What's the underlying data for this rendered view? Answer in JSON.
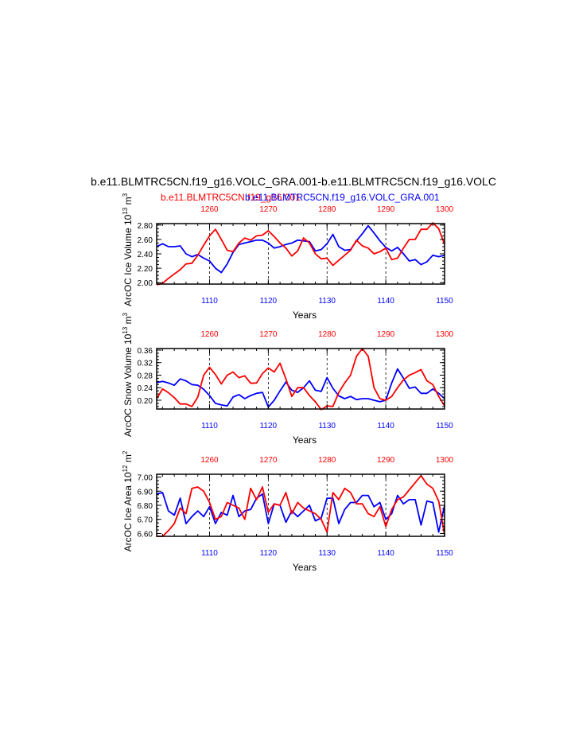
{
  "figure": {
    "title": "b.e11.BLMTRC5CN.f19_g16.VOLC_GRA.001-b.e11.BLMTRC5CN.f19_g16.VOLC",
    "legend_red": "b.e11.BLMTRC5CN.f19_g16.001",
    "legend_blue": "b.e11.BLMTRC5CN.f19_g16.VOLC_GRA.001",
    "colors": {
      "red": "#ff0000",
      "blue": "#0000ff",
      "axis": "#000000",
      "grid": "#000000"
    }
  },
  "chart_data": [
    {
      "type": "line",
      "ylabel": "ArcOC Ice Volume 10",
      "ylabel_exp": "13",
      "ylabel_unit": " m",
      "ylabel_unit_exp": "3",
      "xlabel": "Years",
      "x_bottom": {
        "range": [
          1101,
          1150
        ],
        "ticks": [
          "1110",
          "1120",
          "1130",
          "1140",
          "1150"
        ]
      },
      "x_top": {
        "range": [
          1251,
          1300
        ],
        "ticks": [
          "1260",
          "1270",
          "1280",
          "1290",
          "1300"
        ]
      },
      "ylim": [
        1.98,
        2.82
      ],
      "yticks": [
        "2.00",
        "2.20",
        "2.40",
        "2.60",
        "2.80"
      ],
      "grid_x": [
        1110,
        1120,
        1130,
        1140
      ],
      "series": [
        {
          "color": "#0000ff",
          "axis": "bottom",
          "x": [
            1101,
            1102,
            1103,
            1104,
            1105,
            1106,
            1107,
            1108,
            1109,
            1110,
            1111,
            1112,
            1113,
            1114,
            1115,
            1116,
            1117,
            1118,
            1119,
            1120,
            1121,
            1122,
            1123,
            1124,
            1125,
            1126,
            1127,
            1128,
            1129,
            1130,
            1131,
            1132,
            1133,
            1134,
            1135,
            1136,
            1137,
            1138,
            1139,
            1140,
            1141,
            1142,
            1143,
            1144,
            1145,
            1146,
            1147,
            1148,
            1149,
            1150
          ],
          "values": [
            2.5,
            2.54,
            2.5,
            2.5,
            2.51,
            2.4,
            2.36,
            2.39,
            2.34,
            2.3,
            2.2,
            2.14,
            2.26,
            2.42,
            2.53,
            2.55,
            2.57,
            2.59,
            2.59,
            2.55,
            2.48,
            2.5,
            2.53,
            2.55,
            2.59,
            2.58,
            2.57,
            2.44,
            2.46,
            2.54,
            2.67,
            2.5,
            2.45,
            2.46,
            2.58,
            2.68,
            2.79,
            2.69,
            2.58,
            2.49,
            2.44,
            2.49,
            2.4,
            2.3,
            2.32,
            2.25,
            2.29,
            2.38,
            2.36,
            2.38
          ]
        },
        {
          "color": "#ff0000",
          "axis": "top",
          "x": [
            1251,
            1252,
            1253,
            1254,
            1255,
            1256,
            1257,
            1258,
            1259,
            1260,
            1261,
            1262,
            1263,
            1264,
            1265,
            1266,
            1267,
            1268,
            1269,
            1270,
            1271,
            1272,
            1273,
            1274,
            1275,
            1276,
            1277,
            1278,
            1279,
            1280,
            1281,
            1282,
            1283,
            1284,
            1285,
            1286,
            1287,
            1288,
            1289,
            1290,
            1291,
            1292,
            1293,
            1294,
            1295,
            1296,
            1297,
            1298,
            1299,
            1300
          ],
          "values": [
            1.97,
            1.99,
            2.06,
            2.12,
            2.18,
            2.26,
            2.27,
            2.38,
            2.52,
            2.65,
            2.74,
            2.6,
            2.45,
            2.43,
            2.55,
            2.62,
            2.59,
            2.65,
            2.66,
            2.72,
            2.64,
            2.55,
            2.48,
            2.37,
            2.44,
            2.62,
            2.55,
            2.4,
            2.33,
            2.34,
            2.24,
            2.31,
            2.38,
            2.45,
            2.59,
            2.51,
            2.48,
            2.4,
            2.43,
            2.48,
            2.32,
            2.34,
            2.48,
            2.6,
            2.6,
            2.74,
            2.74,
            2.83,
            2.75,
            2.53
          ]
        }
      ]
    },
    {
      "type": "line",
      "ylabel": "ArcOC Snow Volume 10",
      "ylabel_exp": "13",
      "ylabel_unit": " m",
      "ylabel_unit_exp": "3",
      "xlabel": "Years",
      "x_bottom": {
        "range": [
          1101,
          1150
        ],
        "ticks": [
          "1110",
          "1120",
          "1130",
          "1140",
          "1150"
        ]
      },
      "x_top": {
        "range": [
          1251,
          1300
        ],
        "ticks": [
          "1260",
          "1270",
          "1280",
          "1290",
          "1300"
        ]
      },
      "ylim": [
        0.172,
        0.365
      ],
      "yticks": [
        "0.20",
        "0.24",
        "0.28",
        "0.32",
        "0.36"
      ],
      "grid_x": [
        1110,
        1120,
        1130,
        1140
      ],
      "series": [
        {
          "color": "#0000ff",
          "axis": "bottom",
          "x": [
            1101,
            1102,
            1103,
            1104,
            1105,
            1106,
            1107,
            1108,
            1109,
            1110,
            1111,
            1112,
            1113,
            1114,
            1115,
            1116,
            1117,
            1118,
            1119,
            1120,
            1121,
            1122,
            1123,
            1124,
            1125,
            1126,
            1127,
            1128,
            1129,
            1130,
            1131,
            1132,
            1133,
            1134,
            1135,
            1136,
            1137,
            1138,
            1139,
            1140,
            1141,
            1142,
            1143,
            1144,
            1145,
            1146,
            1147,
            1148,
            1149,
            1150
          ],
          "values": [
            0.256,
            0.26,
            0.255,
            0.248,
            0.268,
            0.262,
            0.25,
            0.248,
            0.235,
            0.215,
            0.19,
            0.185,
            0.182,
            0.21,
            0.218,
            0.205,
            0.215,
            0.222,
            0.225,
            0.178,
            0.2,
            0.23,
            0.258,
            0.232,
            0.225,
            0.24,
            0.262,
            0.232,
            0.228,
            0.272,
            0.238,
            0.214,
            0.205,
            0.212,
            0.202,
            0.205,
            0.205,
            0.2,
            0.195,
            0.2,
            0.255,
            0.3,
            0.27,
            0.238,
            0.242,
            0.222,
            0.222,
            0.236,
            0.222,
            0.205
          ]
        },
        {
          "color": "#ff0000",
          "axis": "top",
          "x": [
            1251,
            1252,
            1253,
            1254,
            1255,
            1256,
            1257,
            1258,
            1259,
            1260,
            1261,
            1262,
            1263,
            1264,
            1265,
            1266,
            1267,
            1268,
            1269,
            1270,
            1271,
            1272,
            1273,
            1274,
            1275,
            1276,
            1277,
            1278,
            1279,
            1280,
            1281,
            1282,
            1283,
            1284,
            1285,
            1286,
            1287,
            1288,
            1289,
            1290,
            1291,
            1292,
            1293,
            1294,
            1295,
            1296,
            1297,
            1298,
            1299,
            1300
          ],
          "values": [
            0.205,
            0.236,
            0.224,
            0.208,
            0.188,
            0.188,
            0.18,
            0.21,
            0.28,
            0.305,
            0.282,
            0.252,
            0.28,
            0.29,
            0.272,
            0.278,
            0.254,
            0.255,
            0.285,
            0.303,
            0.29,
            0.318,
            0.268,
            0.212,
            0.24,
            0.24,
            0.215,
            0.195,
            0.17,
            0.182,
            0.18,
            0.225,
            0.255,
            0.28,
            0.34,
            0.365,
            0.34,
            0.24,
            0.205,
            0.2,
            0.212,
            0.24,
            0.265,
            0.28,
            0.288,
            0.298,
            0.262,
            0.25,
            0.212,
            0.182
          ]
        }
      ]
    },
    {
      "type": "line",
      "ylabel": "ArcOC Ice Area 10",
      "ylabel_exp": "12",
      "ylabel_unit": " m",
      "ylabel_unit_exp": "2",
      "xlabel": "Years",
      "x_bottom": {
        "range": [
          1101,
          1150
        ],
        "ticks": [
          "1110",
          "1120",
          "1130",
          "1140",
          "1150"
        ]
      },
      "x_top": {
        "range": [
          1251,
          1300
        ],
        "ticks": [
          "1260",
          "1270",
          "1280",
          "1290",
          "1300"
        ]
      },
      "ylim": [
        6.58,
        7.02
      ],
      "yticks": [
        "6.60",
        "6.70",
        "6.80",
        "6.90",
        "7.00"
      ],
      "grid_x": [
        1110,
        1120,
        1130,
        1140
      ],
      "series": [
        {
          "color": "#0000ff",
          "axis": "bottom",
          "x": [
            1101,
            1102,
            1103,
            1104,
            1105,
            1106,
            1107,
            1108,
            1109,
            1110,
            1111,
            1112,
            1113,
            1114,
            1115,
            1116,
            1117,
            1118,
            1119,
            1120,
            1121,
            1122,
            1123,
            1124,
            1125,
            1126,
            1127,
            1128,
            1129,
            1130,
            1131,
            1132,
            1133,
            1134,
            1135,
            1136,
            1137,
            1138,
            1139,
            1140,
            1141,
            1142,
            1143,
            1144,
            1145,
            1146,
            1147,
            1148,
            1149,
            1150
          ],
          "values": [
            6.88,
            6.89,
            6.76,
            6.73,
            6.85,
            6.67,
            6.72,
            6.76,
            6.72,
            6.79,
            6.67,
            6.75,
            6.73,
            6.87,
            6.72,
            6.76,
            6.77,
            6.85,
            6.88,
            6.67,
            6.81,
            6.8,
            6.68,
            6.76,
            6.72,
            6.76,
            6.8,
            6.69,
            6.71,
            6.85,
            6.85,
            6.67,
            6.77,
            6.82,
            6.82,
            6.87,
            6.87,
            6.79,
            6.82,
            6.7,
            6.74,
            6.87,
            6.81,
            6.84,
            6.84,
            6.66,
            6.83,
            6.82,
            6.61,
            6.8
          ]
        },
        {
          "color": "#ff0000",
          "axis": "top",
          "x": [
            1251,
            1252,
            1253,
            1254,
            1255,
            1256,
            1257,
            1258,
            1259,
            1260,
            1261,
            1262,
            1263,
            1264,
            1265,
            1266,
            1267,
            1268,
            1269,
            1270,
            1271,
            1272,
            1273,
            1274,
            1275,
            1276,
            1277,
            1278,
            1279,
            1280,
            1281,
            1282,
            1283,
            1284,
            1285,
            1286,
            1287,
            1288,
            1289,
            1290,
            1291,
            1292,
            1293,
            1294,
            1295,
            1296,
            1297,
            1298,
            1299,
            1300
          ],
          "values": [
            6.58,
            6.58,
            6.62,
            6.67,
            6.78,
            6.74,
            6.92,
            6.93,
            6.9,
            6.82,
            6.7,
            6.72,
            6.82,
            6.8,
            6.78,
            6.7,
            6.92,
            6.84,
            6.93,
            6.75,
            6.81,
            6.8,
            6.89,
            6.74,
            6.82,
            6.78,
            6.76,
            6.74,
            6.7,
            6.61,
            6.89,
            6.84,
            6.92,
            6.89,
            6.81,
            6.81,
            6.74,
            6.72,
            6.79,
            6.65,
            6.77,
            6.84,
            6.86,
            6.91,
            6.96,
            7.01,
            6.95,
            6.92,
            6.83,
            6.59
          ]
        }
      ]
    }
  ]
}
